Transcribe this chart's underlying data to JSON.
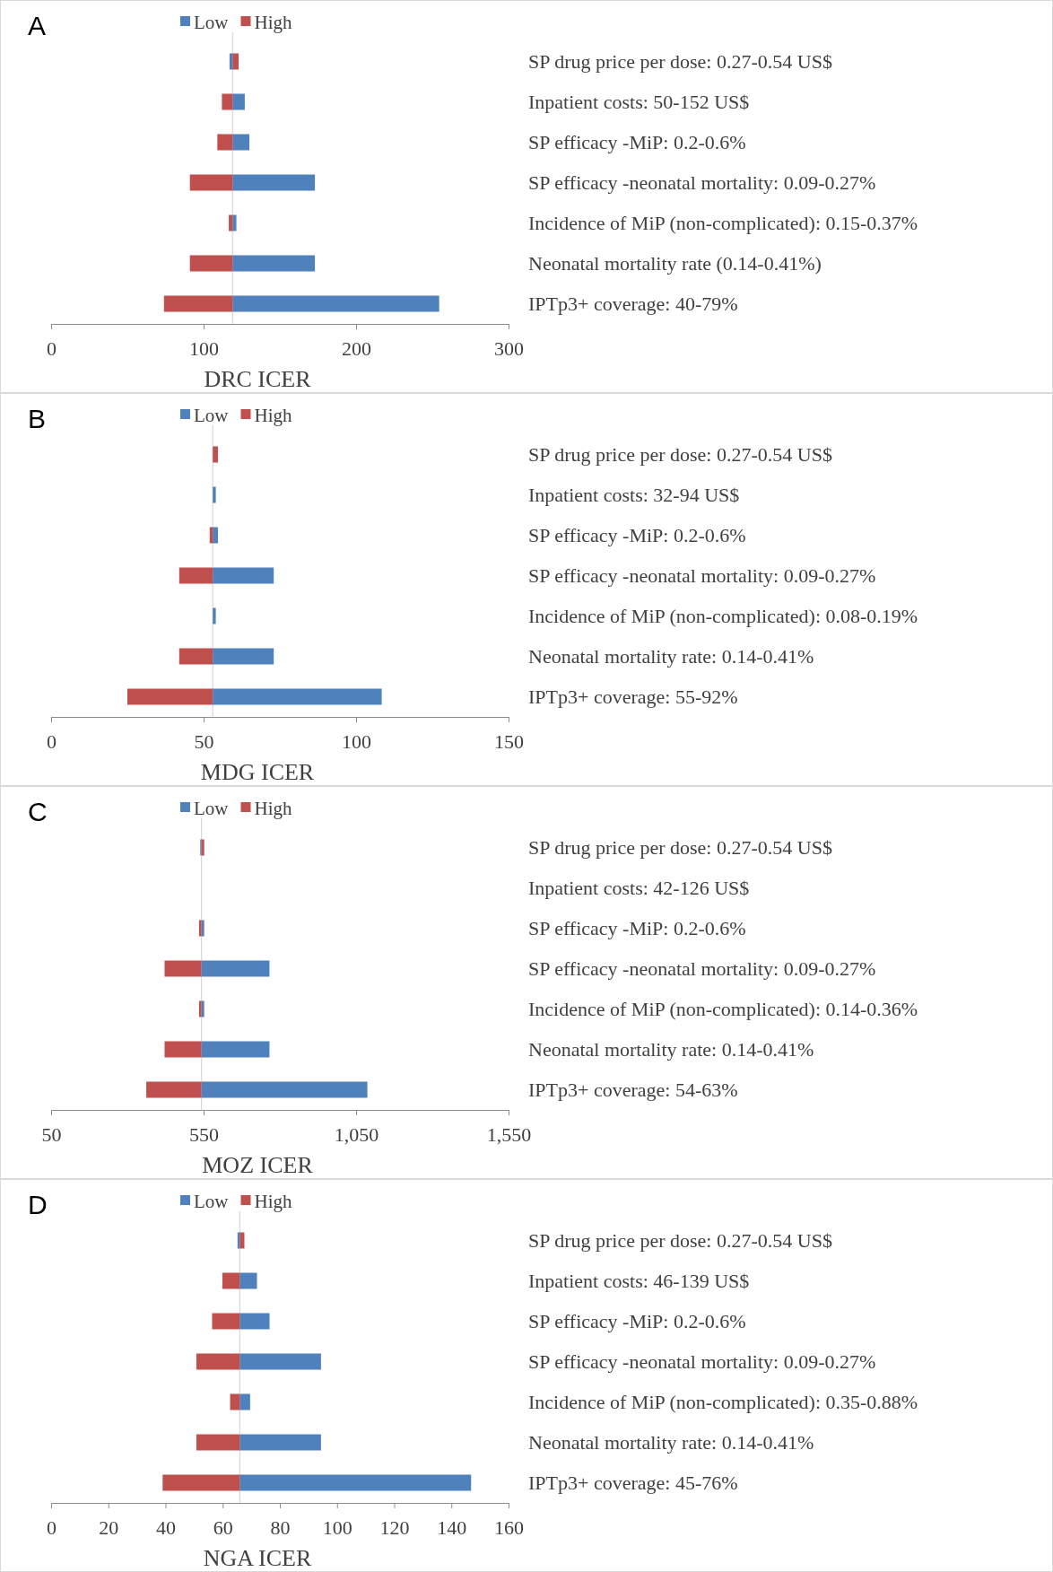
{
  "chart_data": [
    {
      "type": "bar",
      "orientation": "horizontal",
      "title": "A",
      "xlabel": "DRC ICER",
      "legend": "top",
      "xlim": [
        0,
        300
      ],
      "xticks": [
        0,
        100,
        200,
        300
      ],
      "categories": [
        "SP drug price per dose: 0.27-0.54 US$",
        "Inpatient costs: 50-152 US$",
        "SP efficacy -MiP: 0.2-0.6%",
        "SP efficacy -neonatal mortality: 0.09-0.27%",
        "Incidence of MiP (non-complicated): 0.15-0.37%",
        "Neonatal mortality rate (0.14-0.41%)",
        "IPTp3+ coverage: 40-79%"
      ],
      "ref_lines": [
        {
          "axis": "x",
          "value": 119,
          "color": "#d9d9d9"
        }
      ],
      "series": [
        {
          "name": "Low",
          "color": "#4f81bd",
          "base": [
            119,
            119,
            119,
            119,
            119,
            119,
            119
          ],
          "values": [
            -2,
            8,
            11,
            54,
            2.5,
            54,
            135.5
          ]
        },
        {
          "name": "High",
          "color": "#c0504d",
          "base": [
            119,
            119,
            119,
            119,
            119,
            119,
            119
          ],
          "values": [
            4,
            -7,
            -10,
            -28,
            -2.5,
            -28,
            -45
          ]
        }
      ]
    },
    {
      "type": "bar",
      "orientation": "horizontal",
      "title": "B",
      "xlabel": "MDG ICER",
      "legend": "top",
      "xlim": [
        0,
        150
      ],
      "xticks": [
        0,
        50,
        100,
        150
      ],
      "categories": [
        "SP drug price per dose: 0.27-0.54 US$",
        "Inpatient costs: 32-94 US$",
        "SP efficacy -MiP: 0.2-0.6%",
        "SP efficacy -neonatal mortality: 0.09-0.27%",
        "Incidence of MiP (non-complicated): 0.08-0.19%",
        "Neonatal mortality rate: 0.14-0.41%",
        "IPTp3+ coverage: 55-92%"
      ],
      "ref_lines": [
        {
          "axis": "x",
          "value": 53,
          "color": "#d9d9d9"
        }
      ],
      "series": [
        {
          "name": "Low",
          "color": "#4f81bd",
          "base": [
            null,
            53,
            53,
            53,
            53,
            53,
            53
          ],
          "values": [
            null,
            1,
            1.7,
            20,
            1,
            20,
            55.4
          ]
        },
        {
          "name": "High",
          "color": "#c0504d",
          "base": [
            53,
            null,
            53,
            53,
            null,
            53,
            53
          ],
          "values": [
            1.7,
            null,
            -1,
            -11,
            null,
            -11,
            -28
          ]
        }
      ]
    },
    {
      "type": "bar",
      "orientation": "horizontal",
      "title": "C",
      "xlabel": "MOZ ICER",
      "legend": "top",
      "xlim": [
        50,
        1550
      ],
      "xticks": [
        50,
        550,
        {
          "value": 1050,
          "label": "1,050"
        },
        {
          "value": 1550,
          "label": "1,550"
        }
      ],
      "categories": [
        "SP drug price per dose: 0.27-0.54 US$",
        "Inpatient costs: 42-126 US$",
        "SP efficacy -MiP: 0.2-0.6%",
        "SP efficacy -neonatal mortality: 0.09-0.27%",
        "Incidence of MiP (non-complicated): 0.14-0.36%",
        "Neonatal mortality rate: 0.14-0.41%",
        "IPTp3+ coverage: 54-63%"
      ],
      "ref_lines": [
        {
          "axis": "x",
          "value": 543,
          "color": "#d9d9d9"
        }
      ],
      "series": [
        {
          "name": "Low",
          "color": "#4f81bd",
          "base": [
            543,
            null,
            543,
            543,
            543,
            543,
            543
          ],
          "values": [
            -4,
            null,
            9,
            223,
            9,
            223,
            544
          ]
        },
        {
          "name": "High",
          "color": "#c0504d",
          "base": [
            543,
            null,
            543,
            543,
            543,
            543,
            543
          ],
          "values": [
            9,
            null,
            -8,
            -121,
            -8,
            -121,
            -181
          ]
        }
      ]
    },
    {
      "type": "bar",
      "orientation": "horizontal",
      "title": "D",
      "xlabel": "NGA ICER",
      "legend": "top",
      "xlim": [
        0,
        160
      ],
      "xticks": [
        0,
        20,
        40,
        60,
        80,
        100,
        120,
        140,
        160
      ],
      "categories": [
        "SP drug price per dose: 0.27-0.54 US$",
        "Inpatient costs: 46-139 US$",
        "SP efficacy -MiP: 0.2-0.6%",
        "SP efficacy -neonatal mortality: 0.09-0.27%",
        "Incidence of MiP (non-complicated): 0.35-0.88%",
        "Neonatal mortality rate: 0.14-0.41%",
        "IPTp3+ coverage: 45-76%"
      ],
      "ref_lines": [
        {
          "axis": "x",
          "value": 66,
          "color": "#d9d9d9"
        }
      ],
      "series": [
        {
          "name": "Low",
          "color": "#4f81bd",
          "base": [
            66,
            66,
            66,
            66,
            66,
            66,
            66
          ],
          "values": [
            -0.8,
            6,
            10.4,
            28.4,
            3.6,
            28.4,
            80.9
          ]
        },
        {
          "name": "High",
          "color": "#c0504d",
          "base": [
            66,
            66,
            66,
            66,
            66,
            66,
            66
          ],
          "values": [
            1.6,
            -6.1,
            -9.7,
            -15.2,
            -3.4,
            -15.2,
            -27
          ]
        }
      ]
    }
  ]
}
